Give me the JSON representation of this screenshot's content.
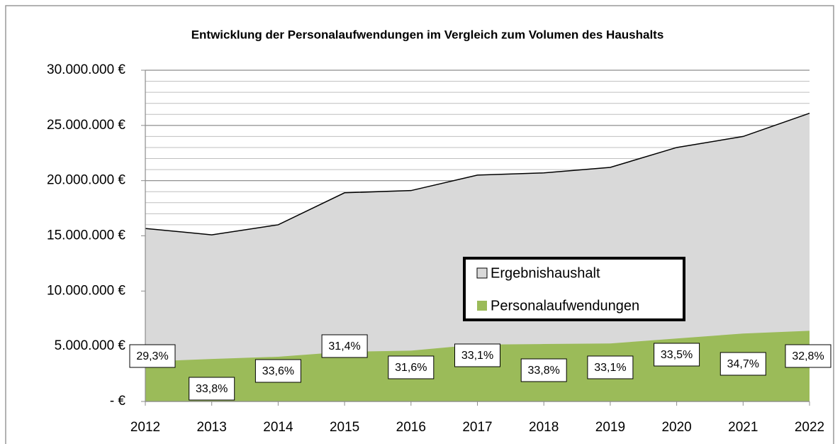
{
  "chart_data": {
    "type": "area",
    "title": "Entwicklung der Personalaufwendungen im Vergleich zum Volumen des Haushalts",
    "categories": [
      "2012",
      "2013",
      "2014",
      "2015",
      "2016",
      "2017",
      "2018",
      "2019",
      "2020",
      "2021",
      "2022"
    ],
    "series": [
      {
        "name": "Ergebnishaushalt",
        "color": "#d9d9d9",
        "values": [
          15670000,
          15090000,
          16000000,
          18900000,
          19100000,
          20500000,
          20700000,
          21200000,
          23000000,
          24000000,
          26100000
        ]
      },
      {
        "name": "Personalaufwendungen",
        "color": "#9bbb59",
        "values": [
          3600000,
          3850000,
          4050000,
          4500000,
          4600000,
          5150000,
          5200000,
          5250000,
          5700000,
          6150000,
          6400000
        ]
      }
    ],
    "annotations": [
      "29,3%",
      "33,8%",
      "33,6%",
      "31,4%",
      "31,6%",
      "33,1%",
      "33,8%",
      "33,1%",
      "33,5%",
      "34,7%",
      "32,8%"
    ],
    "ylim": [
      0,
      30000000
    ],
    "yticks": [
      {
        "value": 0,
        "label": "- €"
      },
      {
        "value": 5000000,
        "label": "5.000.000 €"
      },
      {
        "value": 10000000,
        "label": "10.000.000 €"
      },
      {
        "value": 15000000,
        "label": "15.000.000 €"
      },
      {
        "value": 20000000,
        "label": "20.000.000 €"
      },
      {
        "value": 25000000,
        "label": "25.000.000 €"
      },
      {
        "value": 30000000,
        "label": "30.000.000 €"
      }
    ],
    "minor_grid_step": 1000000,
    "grid": true,
    "legend_position": "center"
  }
}
